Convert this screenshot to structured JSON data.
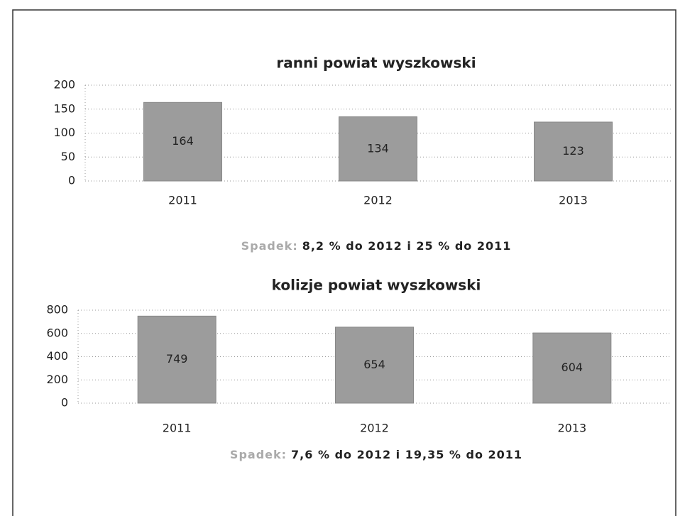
{
  "chart_data": [
    {
      "type": "bar",
      "title": "ranni powiat wyszkowski",
      "categories": [
        "2011",
        "2012",
        "2013"
      ],
      "values": [
        164,
        134,
        123
      ],
      "color": "#9c9c9c",
      "ylim": [
        0,
        200
      ],
      "yticks": [
        0,
        50,
        100,
        150,
        200
      ],
      "grid": true,
      "annotation": {
        "label": "Spadek:",
        "text": "8,2 % do 2012 i 25 % do 2011"
      }
    },
    {
      "type": "bar",
      "title": "kolizje powiat wyszkowski",
      "categories": [
        "2011",
        "2012",
        "2013"
      ],
      "values": [
        749,
        654,
        604
      ],
      "color": "#9c9c9c",
      "ylim": [
        0,
        800
      ],
      "yticks": [
        0,
        200,
        400,
        600,
        800
      ],
      "grid": true,
      "annotation": {
        "label": "Spadek:",
        "text": "7,6 % do 2012 i 19,35 % do 2011"
      }
    }
  ]
}
